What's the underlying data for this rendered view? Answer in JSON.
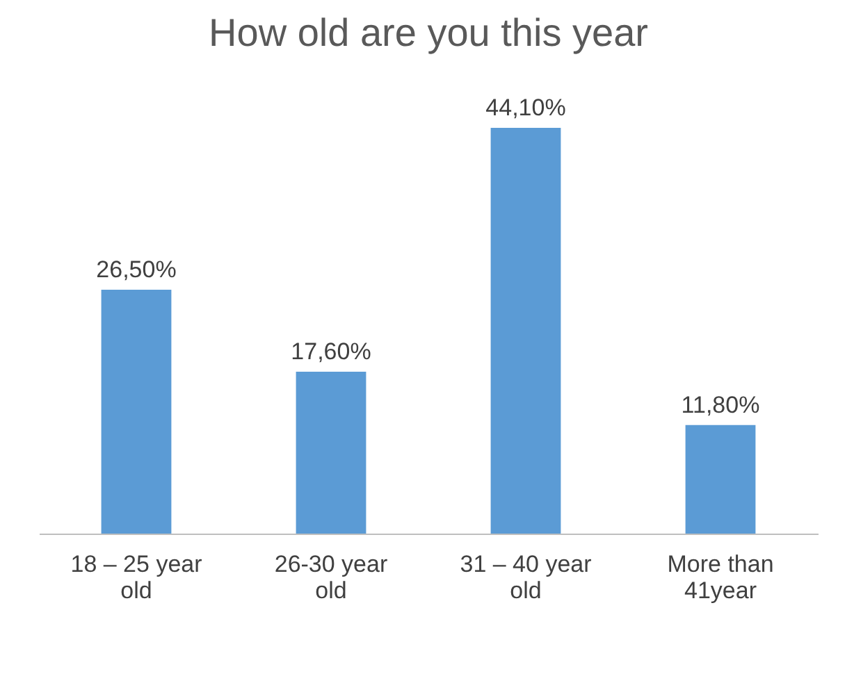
{
  "chart_data": {
    "type": "bar",
    "title": "How old are you this year",
    "categories": [
      "18 – 25  year old",
      "26-30 year old",
      "31 – 40 year old",
      "More than 41year"
    ],
    "values": [
      26.5,
      17.6,
      44.1,
      11.8
    ],
    "value_labels": [
      "26,50%",
      "17,60%",
      "44,10%",
      "11,80%"
    ],
    "color": "#5b9bd5"
  }
}
